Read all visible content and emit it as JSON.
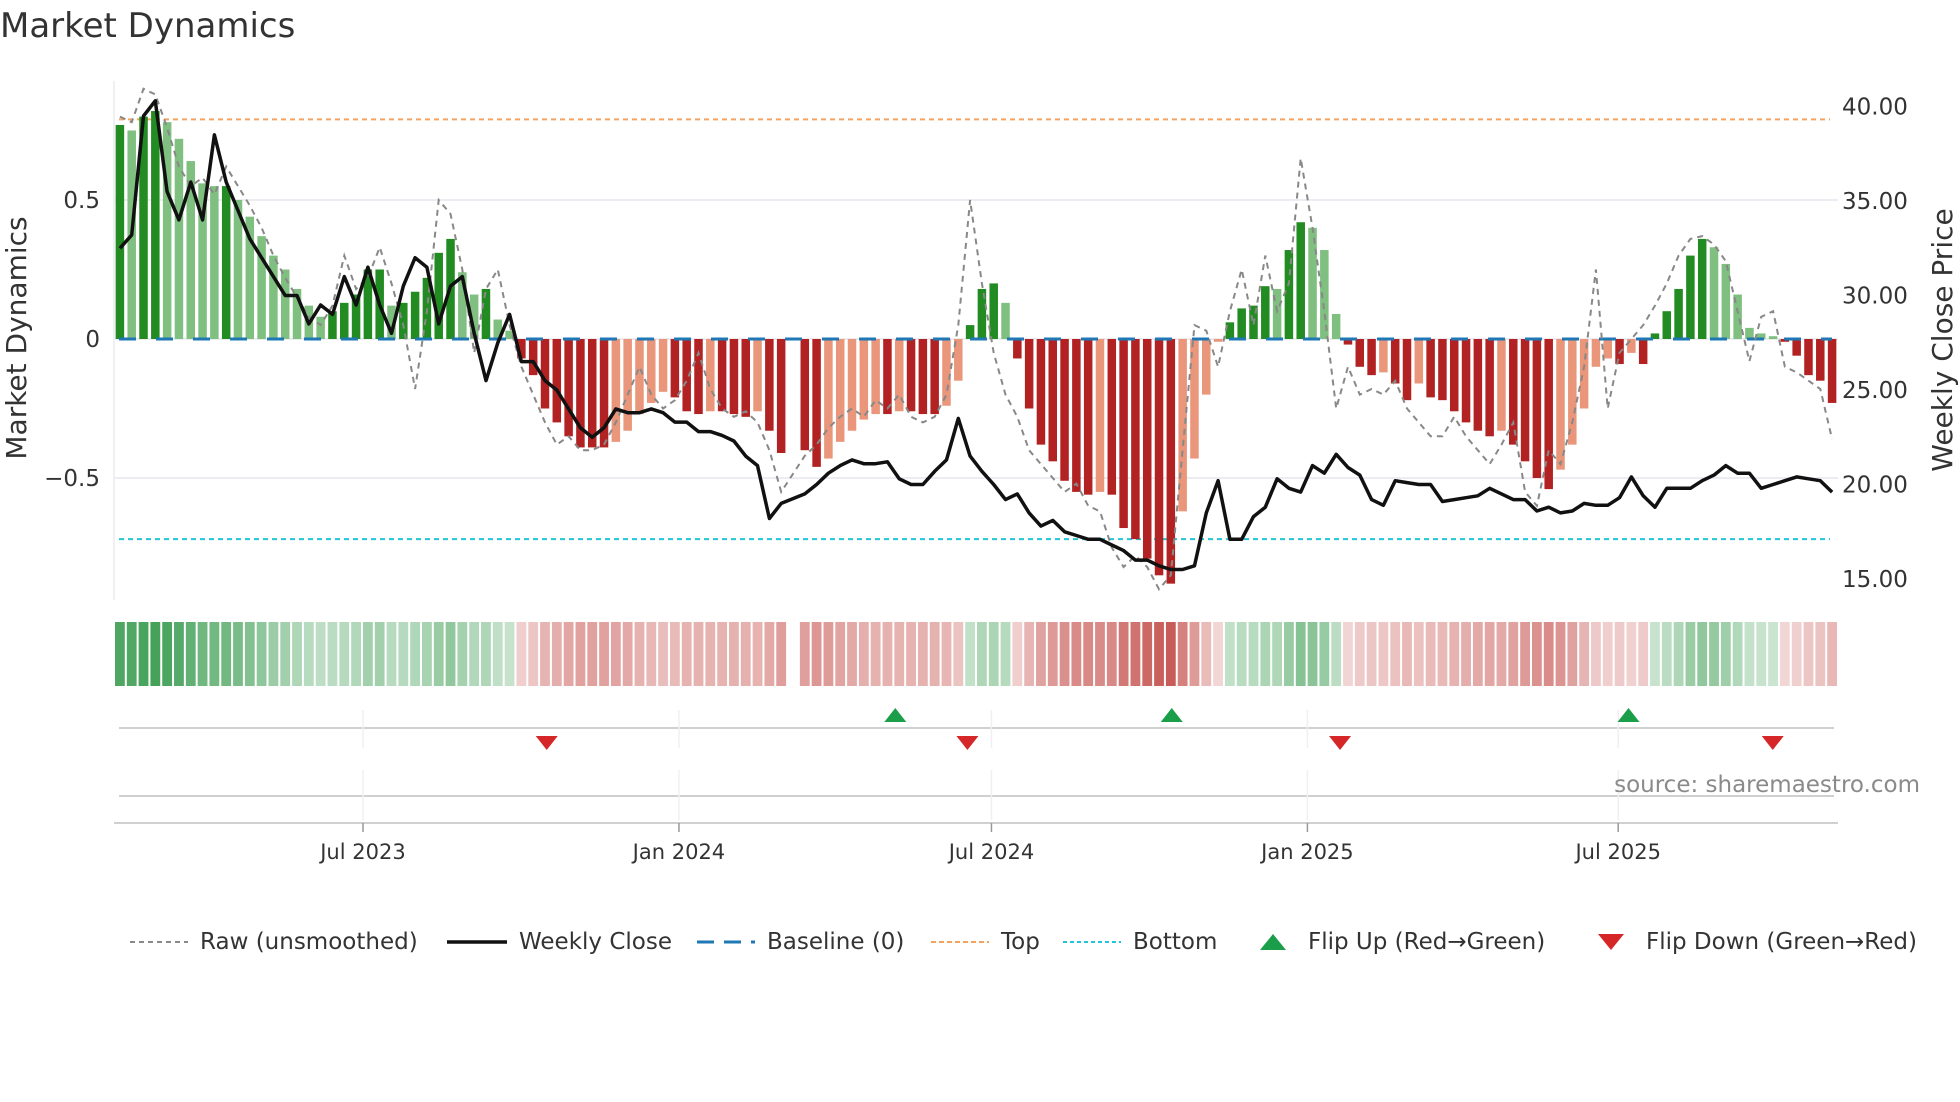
{
  "title": "Market Dynamics",
  "source": "source: sharemaestro.com",
  "colors": {
    "pos_strong": "#228b22",
    "pos_weak": "#7fbf7f",
    "neg_strong": "#b22222",
    "neg_weak": "#e9967a",
    "raw": "#888888",
    "close": "#111111",
    "baseline": "#1f77b4",
    "top": "#f4a460",
    "bottom": "#22c5d5",
    "flip_up": "#1a9e4a",
    "flip_down": "#d62728"
  },
  "legend": [
    {
      "label": "Raw (unsmoothed)",
      "icon": "dashed-gray-line"
    },
    {
      "label": "Weekly Close",
      "icon": "solid-black-line"
    },
    {
      "label": "Baseline (0)",
      "icon": "dashed-blue-line"
    },
    {
      "label": "Top",
      "icon": "dashed-orange-line"
    },
    {
      "label": "Bottom",
      "icon": "dotted-cyan-line"
    },
    {
      "label": "Flip Up (Red→Green)",
      "icon": "triangle-up"
    },
    {
      "label": "Flip Down (Green→Red)",
      "icon": "triangle-down"
    }
  ],
  "chart_data": {
    "type": "bar",
    "title": "Market Dynamics",
    "ylabel": "Market Dynamics",
    "y2label": "Weekly Close Price",
    "ylim": [
      -0.95,
      0.92
    ],
    "y2lim": [
      14.0,
      42.0
    ],
    "yticks": [
      {
        "v": 0.5,
        "label": "0.5"
      },
      {
        "v": 0,
        "label": "0"
      },
      {
        "v": -0.5,
        "label": "−0.5"
      }
    ],
    "y2ticks": [
      {
        "v": 40,
        "label": "40.00"
      },
      {
        "v": 35,
        "label": "35.00"
      },
      {
        "v": 30,
        "label": "30.00"
      },
      {
        "v": 25,
        "label": "25.00"
      },
      {
        "v": 20,
        "label": "20.00"
      },
      {
        "v": 15,
        "label": "15.00"
      }
    ],
    "x_start": "2023-02-06",
    "x_end": "2025-11-06",
    "xticks": [
      {
        "date": "2023-07-01",
        "label": "Jul 2023"
      },
      {
        "date": "2024-01-01",
        "label": "Jan 2024"
      },
      {
        "date": "2024-07-01",
        "label": "Jul 2024"
      },
      {
        "date": "2025-01-01",
        "label": "Jan 2025"
      },
      {
        "date": "2025-07-01",
        "label": "Jul 2025"
      }
    ],
    "top": 0.79,
    "bottom": -0.72,
    "baseline": 0,
    "dynamics": [
      0.77,
      0.75,
      0.8,
      0.82,
      0.78,
      0.72,
      0.64,
      0.56,
      0.55,
      0.55,
      0.5,
      0.44,
      0.37,
      0.3,
      0.25,
      0.18,
      0.12,
      0.08,
      0.1,
      0.13,
      0.16,
      0.25,
      0.25,
      0.12,
      0.13,
      0.17,
      0.22,
      0.31,
      0.36,
      0.24,
      0.16,
      0.18,
      0.07,
      0.03,
      -0.07,
      -0.13,
      -0.25,
      -0.3,
      -0.35,
      -0.39,
      -0.39,
      -0.39,
      -0.37,
      -0.33,
      -0.27,
      -0.23,
      -0.19,
      -0.21,
      -0.26,
      -0.27,
      -0.26,
      -0.26,
      -0.27,
      -0.28,
      -0.26,
      -0.33,
      -0.41,
      null,
      -0.4,
      -0.46,
      -0.43,
      -0.37,
      -0.33,
      -0.29,
      -0.27,
      -0.27,
      -0.26,
      -0.26,
      -0.27,
      -0.27,
      -0.24,
      -0.15,
      0.05,
      0.18,
      0.2,
      0.13,
      -0.07,
      -0.25,
      -0.38,
      -0.44,
      -0.51,
      -0.55,
      -0.56,
      -0.55,
      -0.56,
      -0.68,
      -0.72,
      -0.79,
      -0.85,
      -0.88,
      -0.62,
      -0.43,
      -0.2,
      -0.01,
      0.06,
      0.11,
      0.12,
      0.19,
      0.18,
      0.32,
      0.42,
      0.4,
      0.32,
      0.09,
      -0.02,
      -0.1,
      -0.13,
      -0.12,
      -0.16,
      -0.22,
      -0.16,
      -0.21,
      -0.22,
      -0.26,
      -0.3,
      -0.33,
      -0.35,
      -0.33,
      -0.38,
      -0.44,
      -0.5,
      -0.54,
      -0.47,
      -0.38,
      -0.25,
      -0.1,
      -0.07,
      -0.09,
      -0.05,
      -0.09,
      0.02,
      0.1,
      0.18,
      0.3,
      0.36,
      0.33,
      0.27,
      0.16,
      0.04,
      0.02,
      0.01,
      -0.01,
      -0.06,
      -0.13,
      -0.15,
      -0.23
    ],
    "raw": [
      0.8,
      0.78,
      0.9,
      0.88,
      0.76,
      0.62,
      0.55,
      0.58,
      0.52,
      0.62,
      0.55,
      0.48,
      0.4,
      0.3,
      0.22,
      0.15,
      0.08,
      0.05,
      0.12,
      0.3,
      0.18,
      0.22,
      0.33,
      0.2,
      0.05,
      -0.18,
      0.1,
      0.5,
      0.45,
      0.25,
      -0.05,
      0.18,
      0.25,
      0.05,
      -0.1,
      -0.2,
      -0.3,
      -0.38,
      -0.35,
      -0.4,
      -0.4,
      -0.38,
      -0.3,
      -0.2,
      -0.1,
      -0.2,
      -0.25,
      -0.22,
      -0.15,
      -0.05,
      -0.18,
      -0.25,
      -0.28,
      -0.26,
      -0.3,
      -0.4,
      -0.55,
      null,
      -0.42,
      -0.38,
      -0.32,
      -0.28,
      -0.25,
      -0.28,
      -0.22,
      -0.25,
      -0.2,
      -0.28,
      -0.3,
      -0.28,
      -0.2,
      0.05,
      0.5,
      0.2,
      -0.05,
      -0.2,
      -0.28,
      -0.4,
      -0.45,
      -0.5,
      -0.55,
      -0.52,
      -0.6,
      -0.62,
      -0.75,
      -0.82,
      -0.78,
      -0.82,
      -0.9,
      -0.85,
      -0.4,
      0.05,
      0.03,
      -0.1,
      0.1,
      0.25,
      0.05,
      0.3,
      0.1,
      0.2,
      0.65,
      0.4,
      0.1,
      -0.25,
      -0.1,
      -0.2,
      -0.18,
      -0.2,
      -0.15,
      -0.25,
      -0.3,
      -0.35,
      -0.35,
      -0.28,
      -0.35,
      -0.4,
      -0.45,
      -0.38,
      -0.3,
      -0.55,
      -0.6,
      -0.4,
      -0.45,
      -0.3,
      -0.1,
      0.25,
      -0.25,
      -0.05,
      0.0,
      0.05,
      0.12,
      0.2,
      0.3,
      0.36,
      0.37,
      0.34,
      0.28,
      0.1,
      -0.08,
      0.08,
      0.1,
      -0.1,
      -0.12,
      -0.15,
      -0.18,
      -0.36
    ],
    "close": [
      32.5,
      33.2,
      39.5,
      40.3,
      35.5,
      34.0,
      36.0,
      34.0,
      38.5,
      36.0,
      34.5,
      33.0,
      32.0,
      31.0,
      30.0,
      30.0,
      28.5,
      29.5,
      29.0,
      31.0,
      29.5,
      31.5,
      29.5,
      28.0,
      30.5,
      32.0,
      31.5,
      28.5,
      30.5,
      31.0,
      28.0,
      25.5,
      27.5,
      29.0,
      26.5,
      26.5,
      25.5,
      25.0,
      24.0,
      23.0,
      22.5,
      23.0,
      24.0,
      23.8,
      23.8,
      24.0,
      23.8,
      23.3,
      23.3,
      22.8,
      22.8,
      22.6,
      22.3,
      21.5,
      21.0,
      18.2,
      19.0,
      null,
      19.5,
      20.0,
      20.6,
      21.0,
      21.3,
      21.1,
      21.1,
      21.2,
      20.3,
      20.0,
      20.0,
      20.7,
      21.3,
      23.5,
      21.5,
      20.7,
      20.0,
      19.2,
      19.5,
      18.5,
      17.8,
      18.1,
      17.5,
      17.3,
      17.1,
      17.1,
      16.8,
      16.5,
      16.0,
      16.0,
      15.7,
      15.5,
      15.5,
      15.7,
      18.5,
      20.2,
      17.1,
      17.1,
      18.3,
      18.8,
      20.3,
      19.8,
      19.6,
      21.0,
      20.6,
      21.6,
      20.9,
      20.5,
      19.2,
      18.9,
      20.2,
      20.1,
      20.0,
      20.0,
      19.1,
      19.2,
      19.3,
      19.4,
      19.8,
      19.5,
      19.2,
      19.2,
      18.6,
      18.8,
      18.5,
      18.6,
      19.0,
      18.9,
      18.9,
      19.3,
      20.4,
      19.4,
      18.8,
      19.8,
      19.8,
      19.8,
      20.2,
      20.5,
      21.0,
      20.6,
      20.6,
      19.8,
      20.0,
      20.2,
      20.4,
      20.3,
      20.2,
      19.6
    ],
    "flips_up": [
      "2024-05-06",
      "2024-10-14",
      "2025-07-07"
    ],
    "flips_down": [
      "2023-10-16",
      "2024-06-17",
      "2025-01-20",
      "2025-09-29"
    ],
    "legend_position": "bottom"
  }
}
